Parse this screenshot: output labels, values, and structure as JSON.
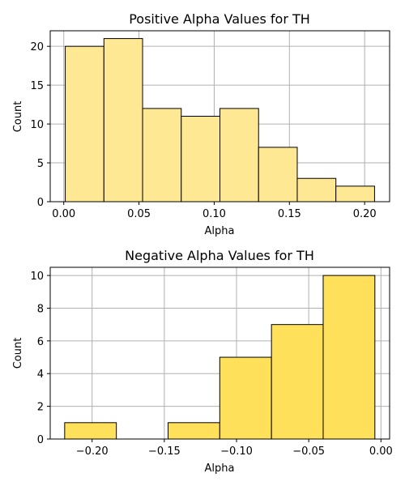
{
  "chart_data": [
    {
      "type": "bar",
      "title": "Positive Alpha Values for TH",
      "xlabel": "Alpha",
      "ylabel": "Count",
      "bin_edges": [
        0.001,
        0.0267,
        0.0524,
        0.0781,
        0.1038,
        0.1295,
        0.1552,
        0.1809,
        0.2066
      ],
      "values": [
        20,
        21,
        12,
        11,
        12,
        7,
        3,
        2
      ],
      "xlim": [
        -0.009,
        0.2166
      ],
      "ylim": [
        0,
        22
      ],
      "xticks": [
        0.0,
        0.05,
        0.1,
        0.15,
        0.2
      ],
      "xtick_labels": [
        "0.00",
        "0.05",
        "0.10",
        "0.15",
        "0.20"
      ],
      "yticks": [
        0,
        5,
        10,
        15,
        20
      ],
      "ytick_labels": [
        "0",
        "5",
        "10",
        "15",
        "20"
      ],
      "grid": true,
      "color": "#ffe894"
    },
    {
      "type": "bar",
      "title": "Negative Alpha Values for TH",
      "xlabel": "Alpha",
      "ylabel": "Count",
      "bin_edges": [
        -0.219,
        -0.1832,
        -0.1474,
        -0.1116,
        -0.0758,
        -0.04,
        -0.0042
      ],
      "values": [
        1,
        0,
        1,
        5,
        7,
        10
      ],
      "xlim": [
        -0.229,
        0.006
      ],
      "ylim": [
        0,
        10.5
      ],
      "xticks": [
        -0.2,
        -0.15,
        -0.1,
        -0.05,
        0.0
      ],
      "xtick_labels": [
        "−0.20",
        "−0.15",
        "−0.10",
        "−0.05",
        "0.00"
      ],
      "yticks": [
        0,
        2,
        4,
        6,
        8,
        10
      ],
      "ytick_labels": [
        "0",
        "2",
        "4",
        "6",
        "8",
        "10"
      ],
      "grid": true,
      "color": "#ffe05a"
    }
  ]
}
